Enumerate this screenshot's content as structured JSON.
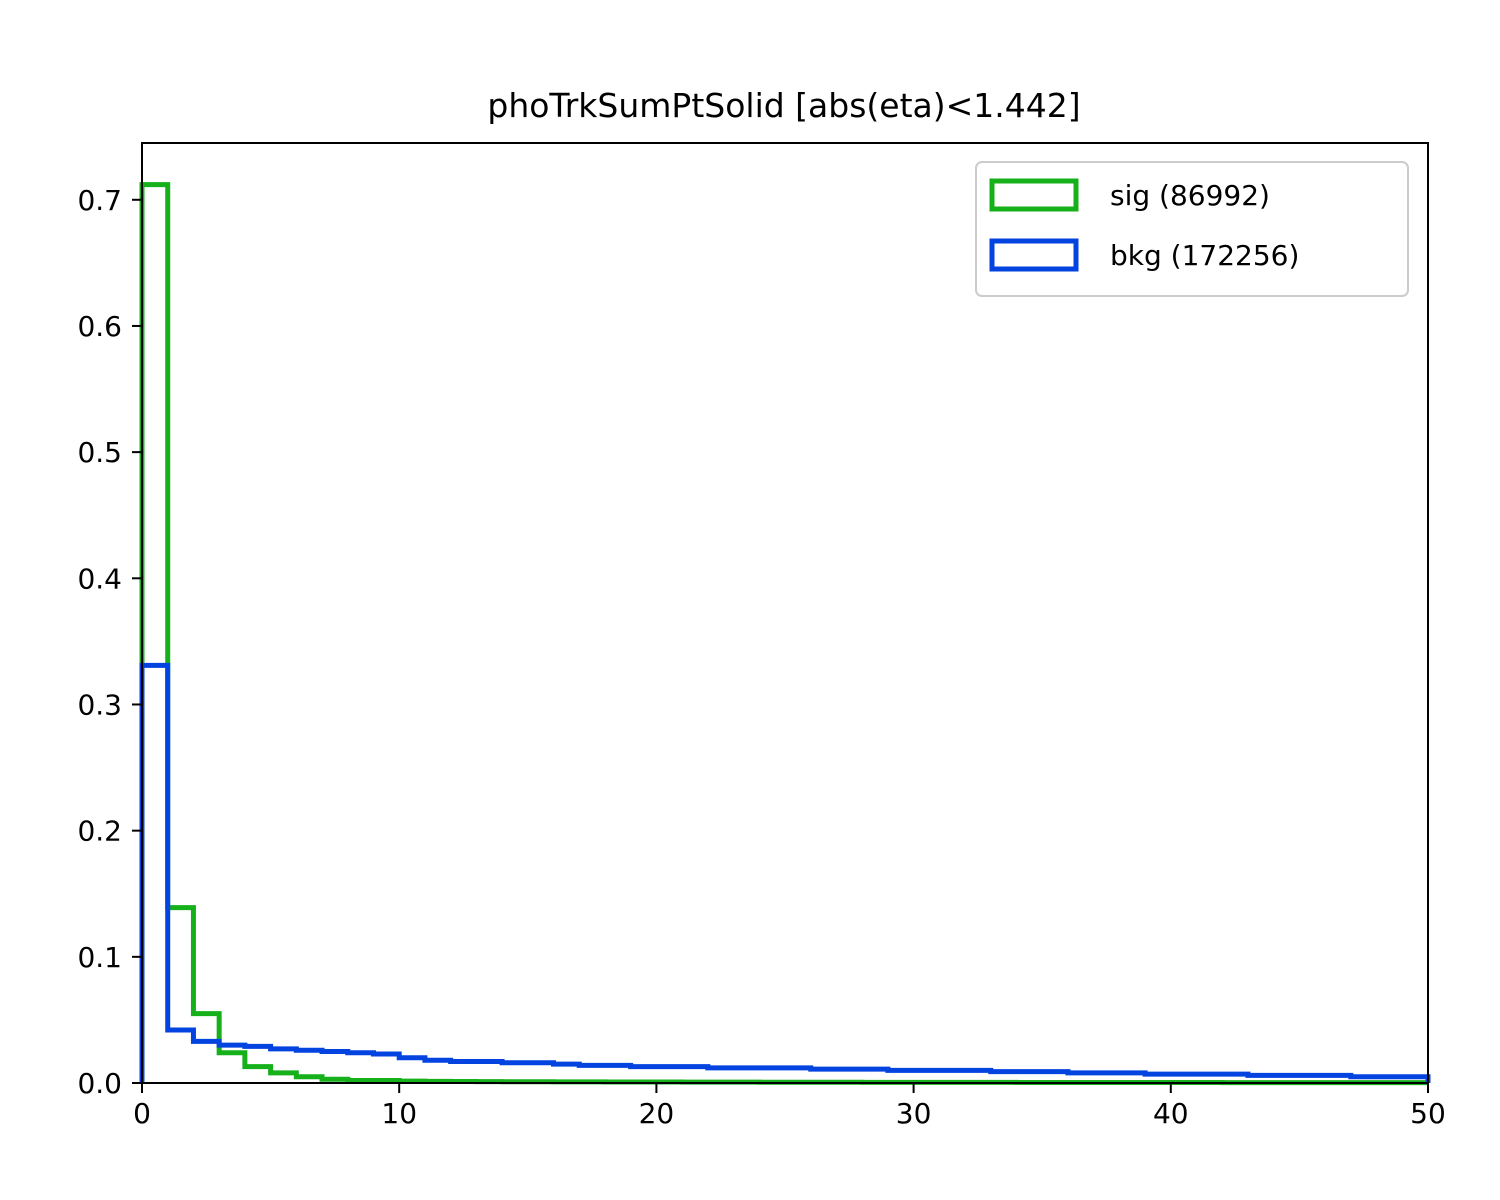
{
  "chart_data": {
    "type": "histogram",
    "title": "phoTrkSumPtSolid [abs(eta)<1.442]",
    "xlabel": "",
    "ylabel": "",
    "xlim": [
      0,
      50
    ],
    "ylim": [
      0,
      0.745
    ],
    "x_ticks": [
      0,
      10,
      20,
      30,
      40,
      50
    ],
    "y_ticks": [
      0.0,
      0.1,
      0.2,
      0.3,
      0.4,
      0.5,
      0.6,
      0.7
    ],
    "x_tick_labels": [
      "0",
      "10",
      "20",
      "30",
      "40",
      "50"
    ],
    "y_tick_labels": [
      "0.0",
      "0.1",
      "0.2",
      "0.3",
      "0.4",
      "0.5",
      "0.6",
      "0.7"
    ],
    "grid": false,
    "legend_position": "top-right",
    "bin_edges": [
      0,
      1,
      2,
      3,
      4,
      5,
      6,
      7,
      8,
      9,
      10,
      11,
      12,
      13,
      14,
      15,
      16,
      17,
      18,
      19,
      20,
      21,
      22,
      23,
      24,
      25,
      26,
      27,
      28,
      29,
      30,
      31,
      32,
      33,
      34,
      35,
      36,
      37,
      38,
      39,
      40,
      41,
      42,
      43,
      44,
      45,
      46,
      47,
      48,
      49,
      50
    ],
    "series": [
      {
        "name": "sig (86992)",
        "color": "#15b01a",
        "values": [
          0.712,
          0.139,
          0.055,
          0.024,
          0.013,
          0.008,
          0.005,
          0.003,
          0.002,
          0.002,
          0.0015,
          0.0013,
          0.0012,
          0.0011,
          0.001,
          0.001,
          0.0009,
          0.0009,
          0.0008,
          0.0008,
          0.0008,
          0.0007,
          0.0007,
          0.0007,
          0.0006,
          0.0006,
          0.0006,
          0.0006,
          0.0005,
          0.0005,
          0.0005,
          0.0005,
          0.0005,
          0.0005,
          0.0004,
          0.0004,
          0.0004,
          0.0004,
          0.0004,
          0.0004,
          0.0004,
          0.0004,
          0.0003,
          0.0003,
          0.0003,
          0.0003,
          0.0003,
          0.0003,
          0.0003,
          0.0003
        ]
      },
      {
        "name": "bkg (172256)",
        "color": "#0343df",
        "values": [
          0.331,
          0.042,
          0.033,
          0.03,
          0.029,
          0.027,
          0.026,
          0.025,
          0.024,
          0.023,
          0.02,
          0.018,
          0.017,
          0.017,
          0.016,
          0.016,
          0.015,
          0.014,
          0.014,
          0.013,
          0.013,
          0.013,
          0.012,
          0.012,
          0.012,
          0.012,
          0.011,
          0.011,
          0.011,
          0.01,
          0.01,
          0.01,
          0.01,
          0.009,
          0.009,
          0.009,
          0.008,
          0.008,
          0.008,
          0.007,
          0.007,
          0.007,
          0.007,
          0.006,
          0.006,
          0.006,
          0.006,
          0.005,
          0.005,
          0.005
        ]
      }
    ]
  }
}
